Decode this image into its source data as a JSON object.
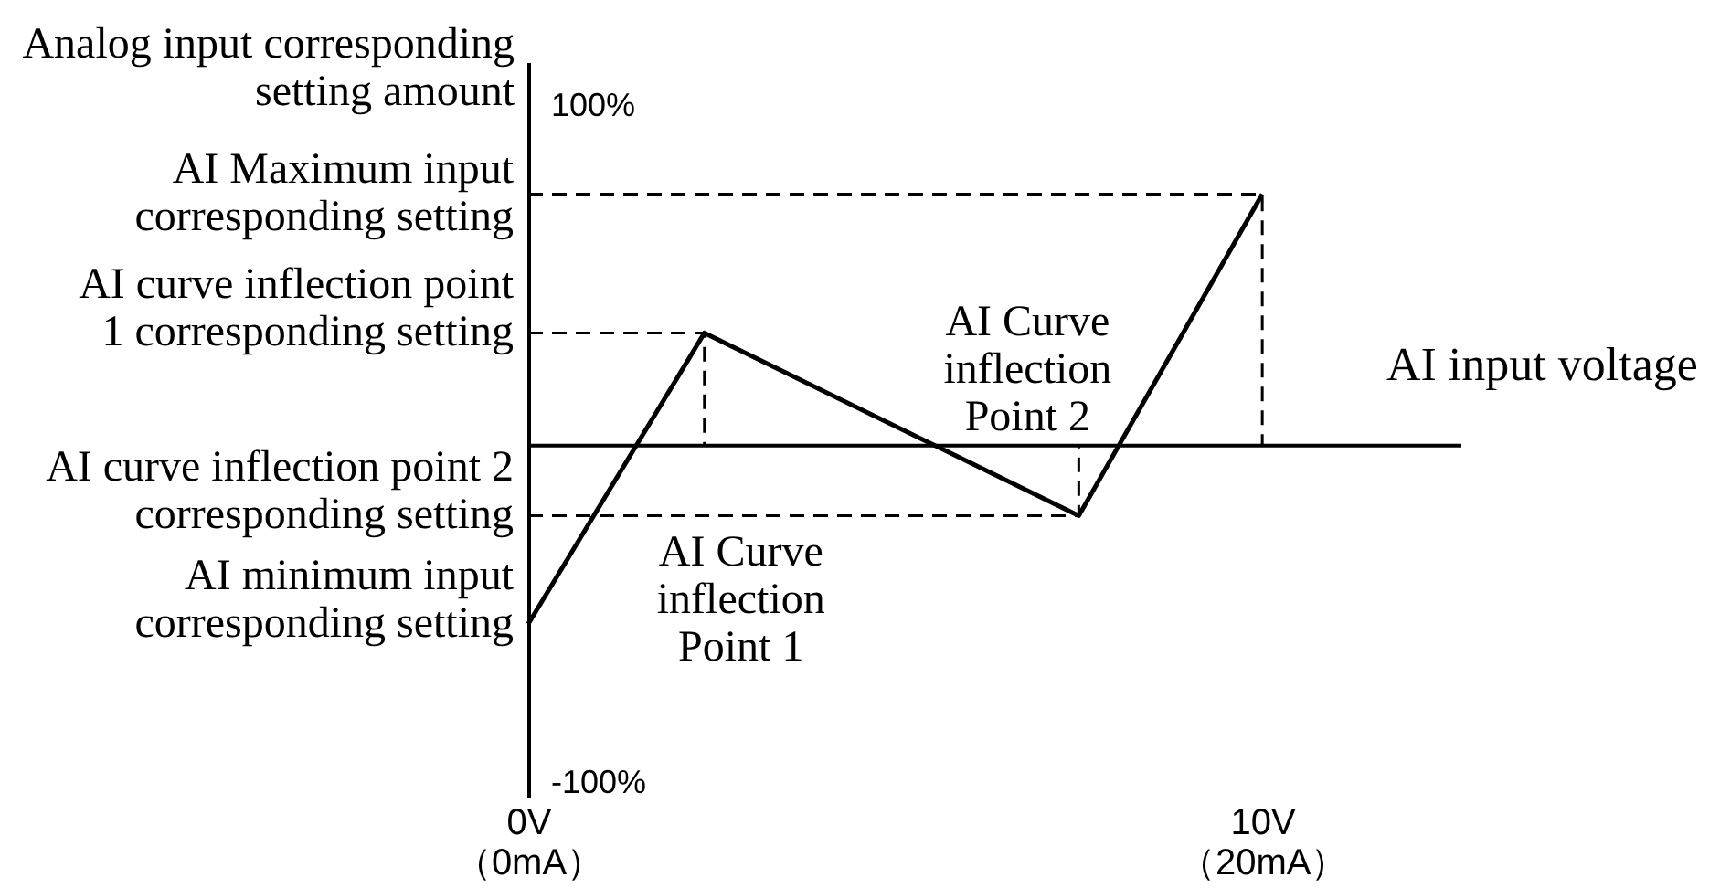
{
  "chart_data": {
    "type": "line",
    "xlabel": "AI input voltage",
    "ylabel": "Analog input corresponding\nsetting amount",
    "xlim": [
      0,
      12.7
    ],
    "ylim": [
      -104,
      113
    ],
    "x2lim": [
      0,
      25.4
    ],
    "xticks": [
      {
        "value": 0,
        "label": "0V"
      },
      {
        "value": 10,
        "label": "10V"
      }
    ],
    "x2ticks": [
      {
        "value": 0,
        "label": "（0mA）"
      },
      {
        "value": 20,
        "label": "（20mA）"
      }
    ],
    "yticks": [
      {
        "value": 100,
        "label": "100%"
      },
      {
        "value": -100,
        "label": "-100%"
      }
    ],
    "series": [
      {
        "color": "#000000",
        "line_style": "solid",
        "x": [
          0,
          2.4,
          7.5,
          10
        ],
        "values": [
          -53,
          33,
          -21,
          74
        ]
      },
      {
        "color": "#000000",
        "line_style": "dashed",
        "x": [
          0,
          10,
          10
        ],
        "values": [
          74,
          74,
          0
        ]
      },
      {
        "color": "#000000",
        "line_style": "dashed",
        "x": [
          0,
          2.4,
          2.4
        ],
        "values": [
          33,
          33,
          0
        ]
      },
      {
        "color": "#000000",
        "line_style": "dashed",
        "x": [
          0,
          7.5,
          7.5
        ],
        "values": [
          -21,
          -21,
          0
        ]
      }
    ],
    "annotations": [
      {
        "text": "AI Maximum input\ncorresponding setting",
        "x": 0,
        "y": 74
      },
      {
        "text": "AI curve inflection point\n1 corresponding setting",
        "x": 0,
        "y": 33
      },
      {
        "text": "AI curve inflection point 2\ncorresponding setting",
        "x": 0,
        "y": -21
      },
      {
        "text": "AI minimum input\ncorresponding setting",
        "x": 0,
        "y": -53
      },
      {
        "text": "AI Curve\ninflection\nPoint 1",
        "x": 2.4,
        "y": 0
      },
      {
        "text": "AI Curve\ninflection\nPoint 2",
        "x": 7.5,
        "y": 0
      }
    ]
  }
}
